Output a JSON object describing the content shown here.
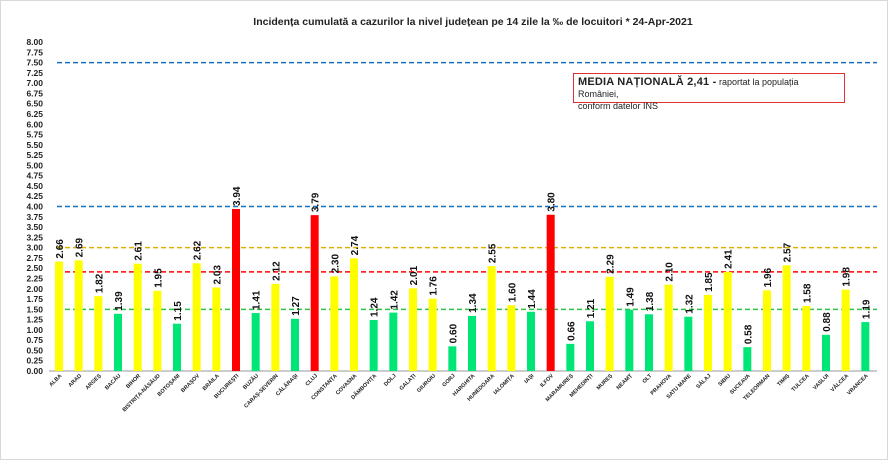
{
  "chart_data": {
    "type": "bar",
    "title": "Incidența cumulată a cazurilor la nivel județean pe 14 zile la ‰ de locuitori *   24-Apr-2021",
    "xlabel": "",
    "ylabel": "",
    "ylim": [
      0,
      8
    ],
    "yticks": [
      "0.00",
      "0.25",
      "0.50",
      "0.75",
      "1.00",
      "1.25",
      "1.50",
      "1.75",
      "2.00",
      "2.25",
      "2.50",
      "2.75",
      "3.00",
      "3.25",
      "3.50",
      "3.75",
      "4.00",
      "4.25",
      "4.50",
      "4.75",
      "5.00",
      "5.25",
      "5.50",
      "5.75",
      "6.00",
      "6.25",
      "6.50",
      "6.75",
      "7.00",
      "7.25",
      "7.50",
      "7.75",
      "8.00"
    ],
    "grid": false,
    "categories": [
      "ALBA",
      "ARAD",
      "ARGEȘ",
      "BACĂU",
      "BIHOR",
      "BISTRIȚA-NĂSĂUD",
      "BOTOȘANI",
      "BRAȘOV",
      "BRĂILA",
      "BUCUREȘTI",
      "BUZĂU",
      "CARAȘ-SEVERIN",
      "CĂLĂRAȘI",
      "CLUJ",
      "CONSTANȚA",
      "COVASNA",
      "DÂMBOVIȚA",
      "DOLJ",
      "GALAȚI",
      "GIURGIU",
      "GORJ",
      "HARGHITA",
      "HUNEDOARA",
      "IALOMIȚA",
      "IAȘI",
      "ILFOV",
      "MARAMUREȘ",
      "MEHEDINȚI",
      "MUREȘ",
      "NEAMȚ",
      "OLT",
      "PRAHOVA",
      "SATU MARE",
      "SĂLAJ",
      "SIBIU",
      "SUCEAVA",
      "TELEORMAN",
      "TIMIȘ",
      "TULCEA",
      "VASLUI",
      "VÂLCEA",
      "VRANCEA"
    ],
    "values": [
      2.66,
      2.69,
      1.82,
      1.39,
      2.61,
      1.95,
      1.15,
      2.62,
      2.03,
      3.94,
      1.41,
      2.12,
      1.27,
      3.79,
      2.3,
      2.74,
      1.24,
      1.42,
      2.01,
      1.76,
      0.6,
      1.34,
      2.55,
      1.6,
      1.44,
      3.8,
      0.66,
      1.21,
      2.29,
      1.49,
      1.38,
      2.1,
      1.32,
      1.85,
      2.41,
      0.58,
      1.96,
      2.57,
      1.58,
      0.88,
      1.98,
      1.19
    ],
    "value_labels": [
      "2.66",
      "2.69",
      "1.82",
      "1.39",
      "2.61",
      "1.95",
      "1.15",
      "2.62",
      "2.03",
      "3.94",
      "1.41",
      "2.12",
      "1.27",
      "3.79",
      "2.30",
      "2.74",
      "1.24",
      "1.42",
      "2.01",
      "1.76",
      "0.60",
      "1.34",
      "2.55",
      "1.60",
      "1.44",
      "3.80",
      "0.66",
      "1.21",
      "2.29",
      "1.49",
      "1.38",
      "2.10",
      "1.32",
      "1.85",
      "2.41",
      "0.58",
      "1.96",
      "2.57",
      "1.58",
      "0.88",
      "1.98",
      "1.19"
    ],
    "colors": {
      "low": "#00e676",
      "medium": "#ffff00",
      "high": "#ff0000"
    },
    "thresholds": [
      {
        "value": 1.5,
        "color": "#2ec44a",
        "style": "dashed"
      },
      {
        "value": 2.41,
        "color": "#ff0000",
        "style": "dashed"
      },
      {
        "value": 3.0,
        "color": "#e0b000",
        "style": "dashed"
      },
      {
        "value": 4.0,
        "color": "#1f6fbf",
        "style": "dashed"
      },
      {
        "value": 7.5,
        "color": "#1f6fbf",
        "style": "dashed"
      }
    ],
    "annotation": {
      "bold": "MEDIA NAȚIONALĂ  2,41 -",
      "text1": " raportat la populația României,",
      "text2": "conform datelor INS"
    }
  }
}
